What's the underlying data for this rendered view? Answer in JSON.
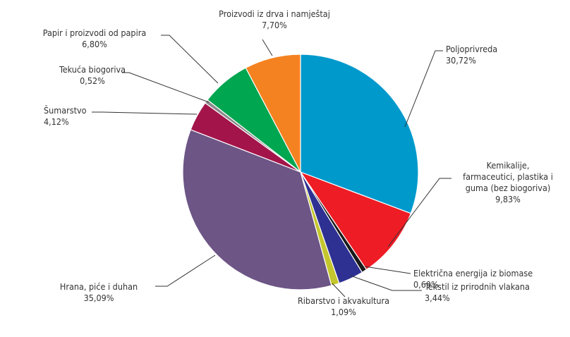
{
  "chart_data": {
    "type": "pie",
    "title": "",
    "slices": [
      {
        "label": "Poljoprivreda",
        "value_label": "30,72%",
        "value": 30.72,
        "color": "#0099cc"
      },
      {
        "label": "Kemikalije, farmaceutici, plastika i guma (bez biogoriva)",
        "label_lines": [
          "Kemikalije,",
          "farmaceutici, plastika i",
          "guma (bez biogoriva)"
        ],
        "value_label": "9,83%",
        "value": 9.83,
        "color": "#ee1c25"
      },
      {
        "label": "Električna energija iz biomase",
        "value_label": "0,69%",
        "value": 0.69,
        "color": "#1a1a1a"
      },
      {
        "label": "Tekstil iz prirodnih vlakana",
        "value_label": "3,44%",
        "value": 3.44,
        "color": "#2e3192"
      },
      {
        "label": "Ribarstvo i akvakultura",
        "value_label": "1,09%",
        "value": 1.09,
        "color": "#c4c62e"
      },
      {
        "label": "Hrana, piće i duhan",
        "value_label": "35,09%",
        "value": 35.09,
        "color": "#6d5586"
      },
      {
        "label": "Šumarstvo",
        "value_label": "4,12%",
        "value": 4.12,
        "color": "#a3154a"
      },
      {
        "label": "Tekuća biogoriva",
        "value_label": "0,52%",
        "value": 0.52,
        "color": "#8a8a8a"
      },
      {
        "label": "Papir i proizvodi od papira",
        "value_label": "6,80%",
        "value": 6.8,
        "color": "#00a650"
      },
      {
        "label": "Proizvodi iz drva i namještaj",
        "value_label": "7,70%",
        "value": 7.7,
        "color": "#f58220"
      }
    ]
  }
}
